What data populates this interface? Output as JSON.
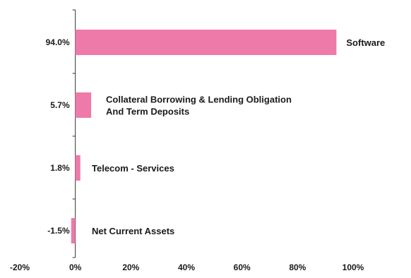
{
  "chart_data": {
    "type": "bar",
    "orientation": "horizontal",
    "categories": [
      [
        "Software"
      ],
      [
        "Collateral Borrowing & Lending Obligation",
        "And Term Deposits"
      ],
      [
        "Telecom - Services"
      ],
      [
        "Net Current Assets"
      ]
    ],
    "values": [
      94.0,
      5.7,
      1.8,
      -1.5
    ],
    "value_labels": [
      "94.0%",
      "5.7%",
      "1.8%",
      "-1.5%"
    ],
    "xlim": [
      -20,
      100
    ],
    "xticks": [
      -20,
      0,
      20,
      40,
      60,
      80,
      100
    ],
    "xtick_labels": [
      "-20%",
      "0%",
      "20%",
      "40%",
      "60%",
      "80%",
      "100%"
    ],
    "title": "",
    "xlabel": "",
    "ylabel": "",
    "grid": false,
    "legend": "none",
    "colors": {
      "bar": "#ee7aa9",
      "axis": "#333333"
    }
  }
}
